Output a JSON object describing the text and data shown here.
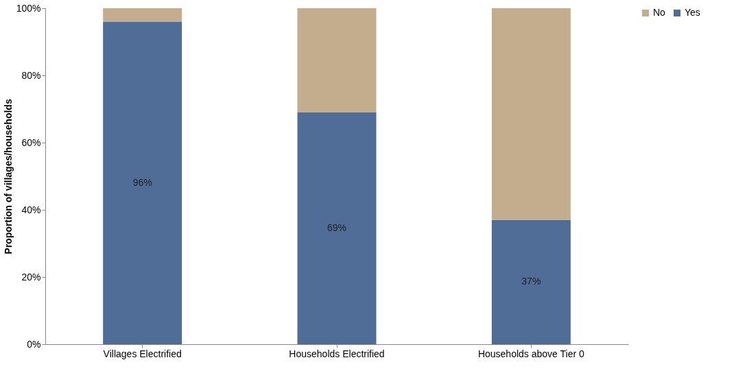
{
  "chart_data": {
    "type": "bar",
    "stacked": true,
    "ylabel": "Proportion of villages/households",
    "categories": [
      "Villages Electrified",
      "Households Electrified",
      "Households above Tier 0"
    ],
    "series": [
      {
        "name": "Yes",
        "color": "#4f6d96",
        "values": [
          96,
          69,
          37
        ],
        "value_labels": [
          "96%",
          "69%",
          "37%"
        ]
      },
      {
        "name": "No",
        "color": "#c4ad8c",
        "values": [
          4,
          31,
          63
        ]
      }
    ],
    "ylim": [
      0,
      100
    ],
    "yticks": [
      {
        "value": 0,
        "label": "0%"
      },
      {
        "value": 20,
        "label": "20%"
      },
      {
        "value": 40,
        "label": "40%"
      },
      {
        "value": 60,
        "label": "60%"
      },
      {
        "value": 80,
        "label": "80%"
      },
      {
        "value": 100,
        "label": "100%"
      }
    ],
    "grid": false,
    "legend": "right"
  }
}
